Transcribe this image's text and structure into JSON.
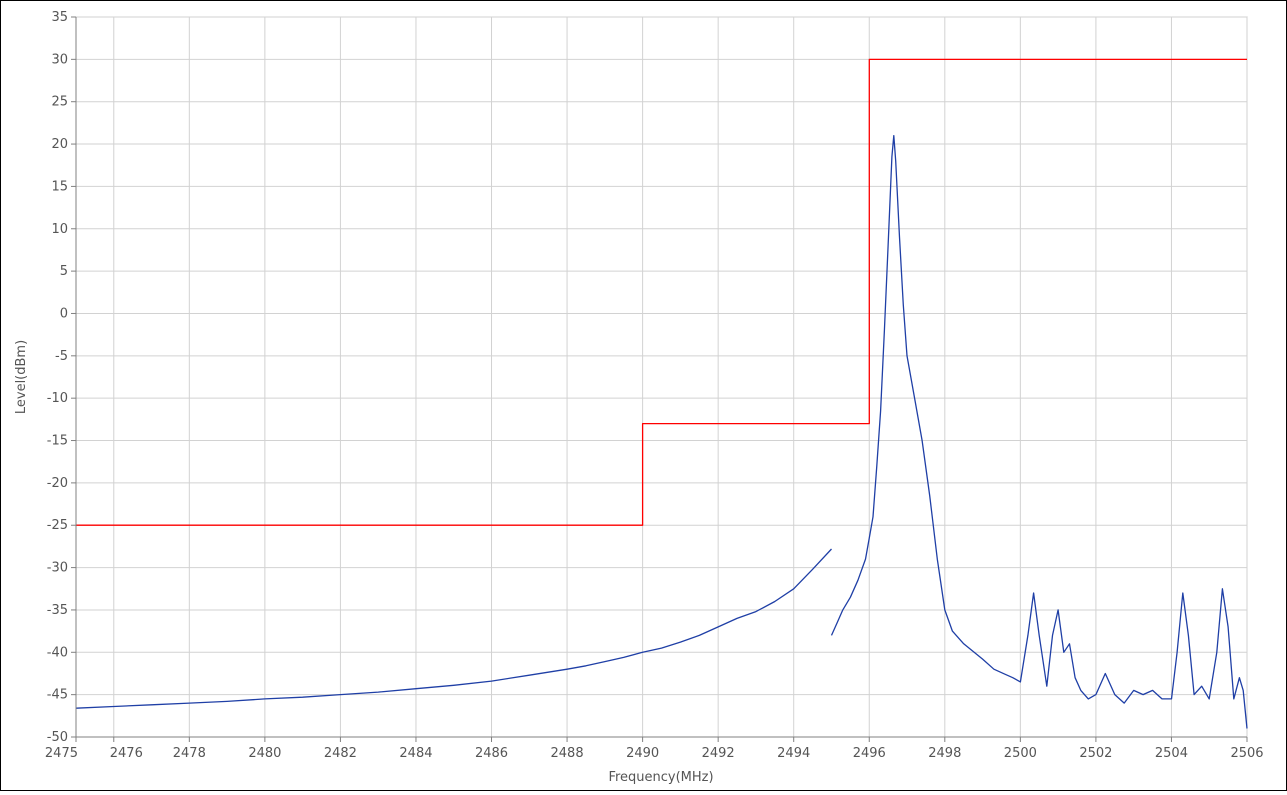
{
  "chart_data": {
    "type": "line",
    "title": "",
    "xlabel": "Frequency(MHz)",
    "ylabel": "Level(dBm)",
    "xlim": [
      2475,
      2506
    ],
    "ylim": [
      -50,
      35
    ],
    "grid": true,
    "x_ticks": [
      2475,
      2476,
      2478,
      2480,
      2482,
      2484,
      2486,
      2488,
      2490,
      2492,
      2494,
      2496,
      2498,
      2500,
      2502,
      2504,
      2506
    ],
    "x_tick_labels": [
      "2475",
      "2476",
      "2478",
      "2480",
      "2482",
      "2484",
      "2486",
      "2488",
      "2490",
      "2492",
      "2494",
      "2496",
      "2498",
      "2500",
      "2502",
      "2504",
      "2506"
    ],
    "y_ticks": [
      35,
      30,
      25,
      20,
      15,
      10,
      5,
      0,
      -5,
      -10,
      -15,
      -20,
      -25,
      -30,
      -35,
      -40,
      -45,
      -50
    ],
    "y_tick_labels": [
      "35",
      "30",
      "25",
      "20",
      "15",
      "10",
      "5",
      "0",
      "-5",
      "-10",
      "-15",
      "-20",
      "-25",
      "-30",
      "-35",
      "-40",
      "-45",
      "-50"
    ],
    "series": [
      {
        "color": "#ff0000",
        "x": [
          2475,
          2490,
          2490,
          2496,
          2496,
          2506
        ],
        "y": [
          -25,
          -25,
          -13,
          -13,
          30,
          30
        ]
      },
      {
        "color": "#1f3fa6",
        "x": [
          2475,
          2476,
          2477,
          2478,
          2479,
          2480,
          2481,
          2482,
          2483,
          2484,
          2485,
          2486,
          2487,
          2488,
          2488.5,
          2489,
          2489.5,
          2490,
          2490.5,
          2491,
          2491.5,
          2492,
          2492.5,
          2493,
          2493.5,
          2494,
          2494.5,
          2495
        ],
        "y": [
          -46.6,
          -46.4,
          -46.2,
          -46.0,
          -45.8,
          -45.5,
          -45.3,
          -45.0,
          -44.7,
          -44.3,
          -43.9,
          -43.4,
          -42.7,
          -42.0,
          -41.6,
          -41.1,
          -40.6,
          -40.0,
          -39.5,
          -38.8,
          -38.0,
          -37.0,
          -36.0,
          -35.2,
          -34.0,
          -32.5,
          -30.2,
          -27.8
        ]
      },
      {
        "color": "#1f3fa6",
        "x": [
          2495,
          2495.15,
          2495.3,
          2495.5,
          2495.7,
          2495.9,
          2496,
          2496.1,
          2496.2,
          2496.3,
          2496.4,
          2496.5,
          2496.6,
          2496.65,
          2496.7,
          2496.8,
          2496.9,
          2497,
          2497.1,
          2497.2,
          2497.4,
          2497.6,
          2497.8,
          2498,
          2498.2,
          2498.5,
          2499,
          2499.3,
          2499.6,
          2499.8,
          2500,
          2500.2,
          2500.35,
          2500.5,
          2500.7,
          2500.85,
          2501,
          2501.15,
          2501.3,
          2501.45,
          2501.6,
          2501.8,
          2502,
          2502.25,
          2502.5,
          2502.75,
          2503,
          2503.25,
          2503.5,
          2503.75,
          2504,
          2504.15,
          2504.3,
          2504.45,
          2504.6,
          2504.8,
          2505,
          2505.2,
          2505.35,
          2505.5,
          2505.65,
          2505.8,
          2505.9,
          2506
        ],
        "y": [
          -38.0,
          -36.5,
          -35.0,
          -33.5,
          -31.5,
          -29.0,
          -26.5,
          -24.0,
          -18.0,
          -11.5,
          -2.0,
          8.0,
          18.5,
          21.0,
          18.0,
          9.0,
          1.0,
          -5.0,
          -7.5,
          -10.0,
          -15.0,
          -21.5,
          -29.0,
          -35.0,
          -37.5,
          -39.0,
          -40.8,
          -42.0,
          -42.6,
          -43.0,
          -43.5,
          -38.0,
          -33.0,
          -38.0,
          -44.0,
          -38.0,
          -35.0,
          -40.0,
          -39.0,
          -43.0,
          -44.5,
          -45.5,
          -45.0,
          -42.5,
          -45.0,
          -46.0,
          -44.5,
          -45.0,
          -44.5,
          -45.5,
          -45.5,
          -40.0,
          -33.0,
          -38.0,
          -45.0,
          -44.0,
          -45.5,
          -40.0,
          -32.5,
          -37.0,
          -45.5,
          -43.0,
          -44.5,
          -49.0
        ]
      }
    ]
  }
}
